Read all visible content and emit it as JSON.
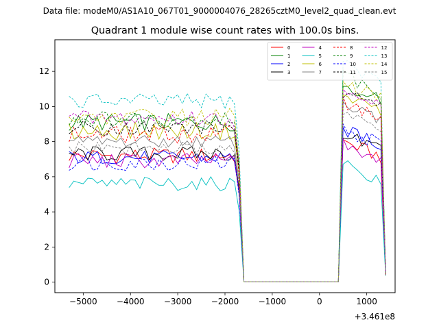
{
  "chart_data": {
    "type": "line",
    "suptitle": "Data file: modeM0/AS1A10_067T01_9000004076_28265cztM0_level2_quad_clean.evt",
    "title": "Quadrant 1 module wise count rates with 100.0s bins.",
    "xlabel": "",
    "ylabel": "",
    "x_offset_label": "+3.461e8",
    "xlim": [
      -5600,
      1600
    ],
    "ylim": [
      -0.6,
      13.8
    ],
    "x_ticks": [
      -5000,
      -4000,
      -3000,
      -2000,
      -1000,
      0,
      1000
    ],
    "x_tick_labels": [
      "−5000",
      "−4000",
      "−3000",
      "−2000",
      "−1000",
      "0",
      "1000"
    ],
    "y_ticks": [
      0,
      2,
      4,
      6,
      8,
      10,
      12
    ],
    "y_tick_labels": [
      "0",
      "2",
      "4",
      "6",
      "8",
      "10",
      "12"
    ],
    "grid": false,
    "legend_position": "top-right",
    "series": [
      {
        "name": "0",
        "color": "#ff0000",
        "dash": false,
        "level": 7.2,
        "high": 7.9,
        "wiggle": 0.45
      },
      {
        "name": "1",
        "color": "#008000",
        "dash": false,
        "level": 9.1,
        "high": 11.2,
        "wiggle": 0.5
      },
      {
        "name": "2",
        "color": "#0000ff",
        "dash": false,
        "level": 7.1,
        "high": 8.6,
        "wiggle": 0.4
      },
      {
        "name": "3",
        "color": "#000000",
        "dash": false,
        "level": 7.3,
        "high": 8.3,
        "wiggle": 0.45
      },
      {
        "name": "4",
        "color": "#bf00bf",
        "dash": false,
        "level": 6.9,
        "high": 7.8,
        "wiggle": 0.45
      },
      {
        "name": "5",
        "color": "#00bfbf",
        "dash": false,
        "level": 5.6,
        "high": 6.6,
        "wiggle": 0.4
      },
      {
        "name": "6",
        "color": "#bfbf00",
        "dash": false,
        "level": 8.6,
        "high": 10.4,
        "wiggle": 0.5
      },
      {
        "name": "7",
        "color": "#808080",
        "dash": false,
        "level": 8.0,
        "high": 10.0,
        "wiggle": 0.35
      },
      {
        "name": "8",
        "color": "#ff0000",
        "dash": true,
        "level": 8.4,
        "high": 10.2,
        "wiggle": 0.5
      },
      {
        "name": "9",
        "color": "#008000",
        "dash": true,
        "level": 9.3,
        "high": 11.6,
        "wiggle": 0.45
      },
      {
        "name": "10",
        "color": "#0000ff",
        "dash": true,
        "level": 6.8,
        "high": 8.6,
        "wiggle": 0.45
      },
      {
        "name": "11",
        "color": "#000000",
        "dash": true,
        "level": 8.8,
        "high": 10.8,
        "wiggle": 0.45
      },
      {
        "name": "12",
        "color": "#bf00bf",
        "dash": true,
        "level": 9.3,
        "high": 11.0,
        "wiggle": 0.5
      },
      {
        "name": "13",
        "color": "#00bfbf",
        "dash": true,
        "level": 10.3,
        "high": 12.2,
        "wiggle": 0.45
      },
      {
        "name": "14",
        "color": "#bfbf00",
        "dash": true,
        "level": 9.4,
        "high": 11.2,
        "wiggle": 0.5
      },
      {
        "name": "15",
        "color": "#808080",
        "dash": true,
        "level": 7.6,
        "high": 9.6,
        "wiggle": 0.4
      }
    ]
  }
}
